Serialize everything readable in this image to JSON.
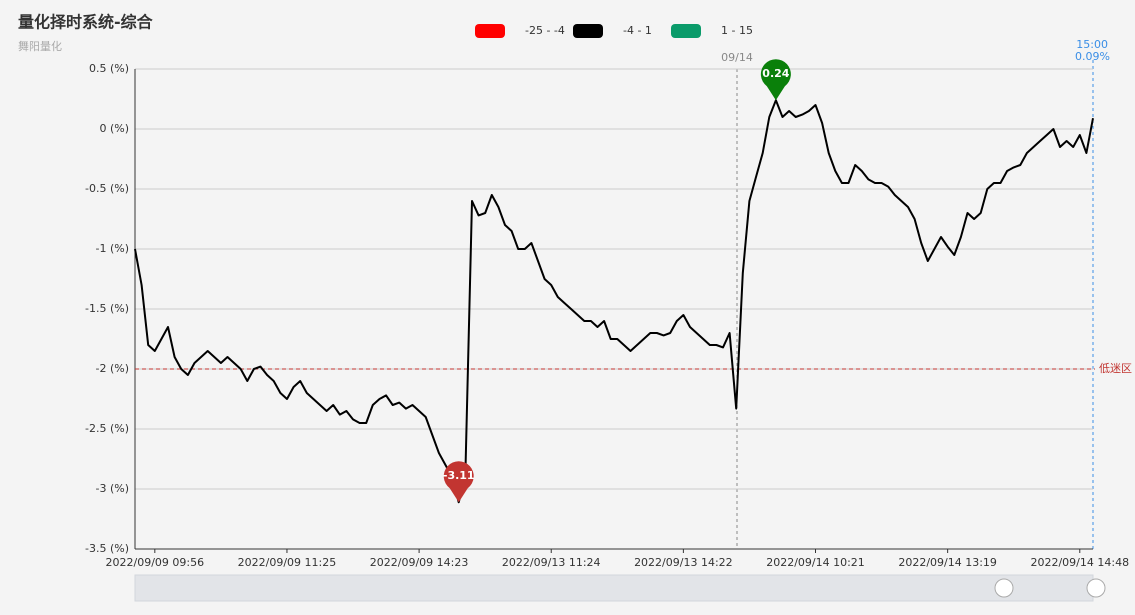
{
  "chart_data": {
    "type": "line",
    "title": "量化择时系统-综合",
    "subtitle": "舞阳量化",
    "categories": [
      null,
      null,
      null,
      "2022/09/09 09:56",
      null,
      null,
      null,
      null,
      null,
      null,
      null,
      null,
      null,
      null,
      null,
      null,
      null,
      null,
      null,
      null,
      null,
      null,
      null,
      "2022/09/09 11:25",
      null,
      null,
      null,
      null,
      null,
      null,
      null,
      null,
      null,
      null,
      null,
      null,
      null,
      null,
      null,
      null,
      null,
      null,
      null,
      "2022/09/09 14:23",
      null,
      null,
      null,
      null,
      null,
      null,
      null,
      null,
      null,
      null,
      null,
      null,
      null,
      null,
      null,
      null,
      null,
      null,
      null,
      "2022/09/13 11:24",
      null,
      null,
      null,
      null,
      null,
      null,
      null,
      null,
      null,
      null,
      null,
      null,
      null,
      null,
      null,
      null,
      null,
      null,
      null,
      "2022/09/13 14:22",
      null,
      null,
      null,
      null,
      null,
      null,
      null,
      null,
      null,
      null,
      null,
      null,
      null,
      null,
      null,
      null,
      null,
      null,
      null,
      "2022/09/14 10:21",
      null,
      null,
      null,
      null,
      null,
      null,
      null,
      null,
      null,
      null,
      null,
      null,
      null,
      null,
      null,
      null,
      null,
      null,
      null,
      "2022/09/14 13:19",
      null,
      null,
      null,
      null,
      null,
      null,
      null,
      null,
      null,
      null,
      null,
      null,
      null,
      null,
      null,
      null,
      null,
      null,
      null,
      "2022/09/14 14:48",
      null,
      null
    ],
    "series": [
      {
        "color": "#000000",
        "values": [
          -1.0,
          -1.3,
          -1.8,
          -1.85,
          -1.75,
          -1.65,
          -1.9,
          -2.0,
          -2.05,
          -1.95,
          -1.9,
          -1.85,
          -1.9,
          -1.95,
          -1.9,
          -1.95,
          -2.0,
          -2.1,
          -2.0,
          -1.98,
          -2.05,
          -2.1,
          -2.2,
          -2.25,
          -2.15,
          -2.1,
          -2.2,
          -2.25,
          -2.3,
          -2.35,
          -2.3,
          -2.38,
          -2.35,
          -2.42,
          -2.45,
          -2.45,
          -2.3,
          -2.25,
          -2.22,
          -2.3,
          -2.28,
          -2.33,
          -2.3,
          -2.35,
          -2.4,
          -2.55,
          -2.7,
          -2.8,
          -2.9,
          -3.11,
          -2.9,
          -0.6,
          -0.72,
          -0.7,
          -0.55,
          -0.65,
          -0.8,
          -0.85,
          -1.0,
          -1.0,
          -0.95,
          -1.1,
          -1.25,
          -1.3,
          -1.4,
          -1.45,
          -1.5,
          -1.55,
          -1.6,
          -1.6,
          -1.65,
          -1.6,
          -1.75,
          -1.75,
          -1.8,
          -1.85,
          -1.8,
          -1.75,
          -1.7,
          -1.7,
          -1.72,
          -1.7,
          -1.6,
          -1.55,
          -1.65,
          -1.7,
          -1.75,
          -1.8,
          -1.8,
          -1.82,
          -1.7,
          -2.33,
          -1.2,
          -0.6,
          -0.4,
          -0.2,
          0.1,
          0.24,
          0.1,
          0.15,
          0.1,
          0.12,
          0.15,
          0.2,
          0.05,
          -0.2,
          -0.35,
          -0.45,
          -0.45,
          -0.3,
          -0.35,
          -0.42,
          -0.45,
          -0.45,
          -0.48,
          -0.55,
          -0.6,
          -0.65,
          -0.75,
          -0.95,
          -1.1,
          -1.0,
          -0.9,
          -0.98,
          -1.05,
          -0.9,
          -0.7,
          -0.75,
          -0.7,
          -0.5,
          -0.45,
          -0.45,
          -0.35,
          -0.32,
          -0.3,
          -0.2,
          -0.15,
          -0.1,
          -0.05,
          0.0,
          -0.15,
          -0.1,
          -0.15,
          -0.05,
          -0.2,
          0.09
        ]
      }
    ],
    "ylim": [
      -3.5,
      0.5
    ],
    "yticks": [
      {
        "value": 0.5,
        "label": "0.5 (%)"
      },
      {
        "value": 0,
        "label": "0 (%)"
      },
      {
        "value": -0.5,
        "label": "-0.5 (%)"
      },
      {
        "value": -1,
        "label": "-1 (%)"
      },
      {
        "value": -1.5,
        "label": "-1.5 (%)"
      },
      {
        "value": -2,
        "label": "-2 (%)"
      },
      {
        "value": -2.5,
        "label": "-2.5 (%)"
      },
      {
        "value": -3,
        "label": "-3 (%)"
      },
      {
        "value": -3.5,
        "label": "-3.5 (%)"
      }
    ],
    "grid": true,
    "pieces": [
      {
        "label": "-25 - -4",
        "color": "#ff0000"
      },
      {
        "label": "-4 - 1",
        "color": "#000000"
      },
      {
        "label": "1 - 15",
        "color": "#0a9b6a"
      }
    ],
    "mark_points": [
      {
        "type": "max",
        "color": "#0a800a"
      },
      {
        "type": "min",
        "color": "#c23531"
      }
    ],
    "mark_line": {
      "value": -2,
      "label": "低迷区",
      "color": "#c23531"
    },
    "day_marker": "09/14",
    "cursor": {
      "x_label": "15:00",
      "y_label": "0.09%"
    }
  }
}
